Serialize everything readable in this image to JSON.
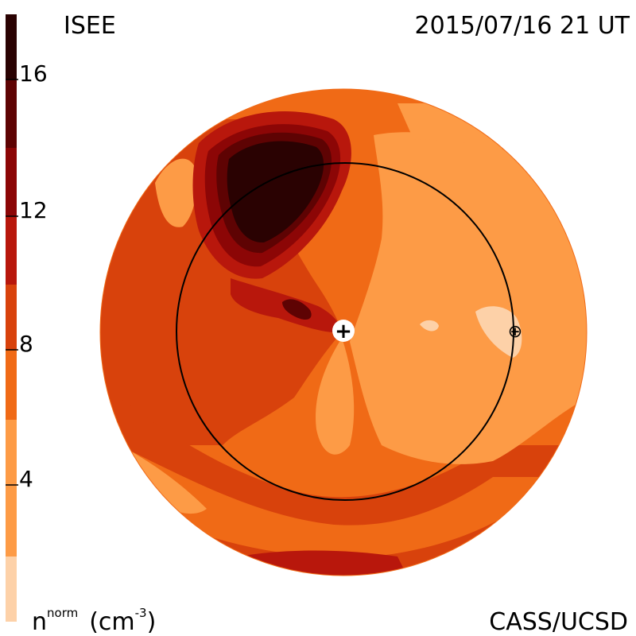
{
  "header": {
    "left_title": "ISEE",
    "right_title": "2015/07/16 21 UT"
  },
  "footer": {
    "left_label_base": "n",
    "left_label_sup": "norm",
    "left_label_unit_open": "(cm",
    "left_label_unit_sup": "-3",
    "left_label_unit_close": ")",
    "right_label": "CASS/UCSD"
  },
  "colorbar": {
    "ticks": [
      "16",
      "12",
      "8",
      "4"
    ],
    "colors": [
      "#fdd1a8",
      "#fd9b46",
      "#f06a16",
      "#d8420c",
      "#b8170c",
      "#8c0606",
      "#5e0303",
      "#2a0202"
    ]
  },
  "map": {
    "sun_symbol": "+",
    "earth_symbol": "⊕"
  }
}
